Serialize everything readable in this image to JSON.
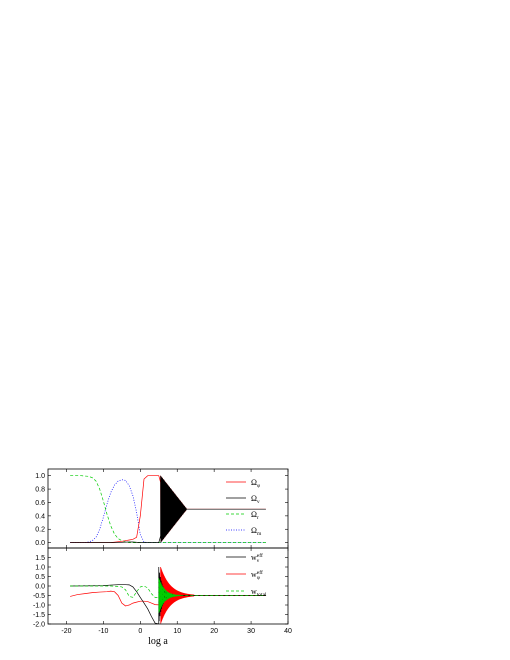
{
  "chart_data": [
    {
      "type": "line",
      "panel": "top",
      "xlabel": "log a",
      "xlim": [
        -25,
        40
      ],
      "ylim": [
        -0.08,
        1.1
      ],
      "xticks": [
        -20,
        -10,
        0,
        10,
        20,
        30,
        40
      ],
      "xtick_labels": [
        "-20",
        "-10",
        "0",
        "10",
        "20",
        "30",
        "40"
      ],
      "yticks": [
        0.0,
        0.2,
        0.4,
        0.6,
        0.8,
        1.0
      ],
      "ytick_labels": [
        "0.0",
        "0.2",
        "0.4",
        "0.6",
        "0.8",
        "1.0"
      ],
      "legend_position": "right",
      "series": [
        {
          "name": "Ω_φ",
          "legend_main": "Ω",
          "legend_sub": "φ",
          "color": "#ff0000",
          "dash": "solid",
          "x": [
            -19,
            -8,
            -5,
            -3,
            -2,
            -1,
            0,
            1,
            2,
            5,
            5.5
          ],
          "y": [
            0.0,
            0.0,
            0.02,
            0.04,
            0.05,
            0.08,
            0.4,
            0.95,
            1.0,
            1.0,
            0.9
          ],
          "oscillation": {
            "x_start": 5.5,
            "x_end": 12.5,
            "center": 0.5,
            "amplitude": 0.5,
            "half_cycles": 40
          },
          "tail": {
            "x": [
              12.5,
              34
            ],
            "y": [
              0.5,
              0.5
            ]
          }
        },
        {
          "name": "Ω_ν",
          "legend_main": "Ω",
          "legend_sub": "ν",
          "color": "#000000",
          "dash": "solid",
          "x": [
            -19,
            -8,
            -5,
            -3,
            -2,
            0,
            2,
            4,
            5,
            5.5
          ],
          "y": [
            0.0,
            0.0,
            0.005,
            0.01,
            0.01,
            0.0,
            0.0,
            0.0,
            0.0,
            0.1
          ],
          "oscillation": {
            "x_start": 5.5,
            "x_end": 12.5,
            "center": 0.5,
            "amplitude": 0.5,
            "half_cycles": 40
          },
          "tail": {
            "x": [
              12.5,
              34
            ],
            "y": [
              0.5,
              0.5
            ]
          }
        },
        {
          "name": "Ω_r",
          "legend_main": "Ω",
          "legend_sub": "r",
          "color": "#00cc00",
          "dash": "dashed",
          "x": [
            -19,
            -16,
            -14,
            -13,
            -12,
            -11,
            -10,
            -9,
            -8,
            -7,
            -6,
            -5,
            -4,
            -3,
            -2,
            0,
            34
          ],
          "y": [
            1.0,
            1.0,
            0.99,
            0.97,
            0.92,
            0.8,
            0.62,
            0.42,
            0.25,
            0.13,
            0.06,
            0.03,
            0.01,
            0.0,
            0.0,
            0.0,
            0.0
          ]
        },
        {
          "name": "Ω_m",
          "legend_main": "Ω",
          "legend_sub": "m",
          "color": "#0000ff",
          "dash": "dotted",
          "x": [
            -19,
            -15,
            -14,
            -13,
            -12,
            -11,
            -10,
            -9,
            -8,
            -7,
            -6,
            -5,
            -4,
            -3,
            -2,
            -1,
            0,
            1,
            2,
            34
          ],
          "y": [
            0.0,
            0.0,
            0.01,
            0.03,
            0.08,
            0.2,
            0.38,
            0.58,
            0.75,
            0.86,
            0.92,
            0.94,
            0.93,
            0.85,
            0.7,
            0.45,
            0.12,
            0.01,
            0.0,
            0.0
          ]
        }
      ]
    },
    {
      "type": "line",
      "panel": "bottom",
      "xlabel": "log a",
      "xlim": [
        -25,
        40
      ],
      "ylim": [
        -2.0,
        2.0
      ],
      "xticks": [
        -20,
        -10,
        0,
        10,
        20,
        30,
        40
      ],
      "xtick_labels": [
        "-20",
        "-10",
        "0",
        "10",
        "20",
        "30",
        "40"
      ],
      "yticks": [
        -2.0,
        -1.5,
        -1.0,
        -0.5,
        0.0,
        0.5,
        1.0,
        1.5
      ],
      "ytick_labels": [
        "-2.0",
        "-1.5",
        "-1.0",
        "-0.5",
        "0.0",
        "0.5",
        "1.0",
        "1.5"
      ],
      "legend_position": "right",
      "series": [
        {
          "name": "w^eff_ν",
          "legend_main": "w",
          "legend_sup": "eff",
          "legend_sub": "ν",
          "color": "#000000",
          "dash": "solid",
          "x": [
            -19,
            -10,
            -8,
            -6,
            -4,
            -3,
            -2,
            -1,
            0,
            1,
            2,
            3,
            4,
            5
          ],
          "y": [
            0.0,
            0.02,
            0.05,
            0.07,
            0.07,
            0.06,
            -0.05,
            -0.3,
            -0.6,
            -0.9,
            -1.2,
            -1.6,
            -1.95,
            -2.0
          ],
          "oscillation": {
            "x_start": 5,
            "x_end": 9,
            "center": -0.5,
            "amplitude": 1.5,
            "decay_to": 0.02,
            "half_cycles": 18
          },
          "tail": {
            "x": [
              9,
              34
            ],
            "y": [
              -0.5,
              -0.5
            ]
          }
        },
        {
          "name": "w^eff_φ",
          "legend_main": "w",
          "legend_sup": "eff",
          "legend_sub": "φ",
          "color": "#ff0000",
          "dash": "solid",
          "x": [
            -19,
            -17,
            -15,
            -13,
            -11,
            -9,
            -8,
            -7,
            -6,
            -5,
            -4,
            -3,
            -2,
            -1,
            0,
            1,
            2,
            3,
            4,
            5.5
          ],
          "y": [
            -0.55,
            -0.45,
            -0.4,
            -0.35,
            -0.32,
            -0.3,
            -0.27,
            -0.3,
            -0.5,
            -0.9,
            -1.05,
            -1.0,
            -0.9,
            -0.85,
            -0.8,
            -0.8,
            -0.82,
            -0.9,
            -0.98,
            -1.0
          ],
          "oscillation": {
            "x_start": 5.5,
            "x_end": 14.5,
            "center": -0.5,
            "amplitude": 1.5,
            "decay_to": 0.03,
            "half_cycles": 110
          },
          "tail": {
            "x": [
              14.5,
              34
            ],
            "y": [
              -0.5,
              -0.5
            ]
          }
        },
        {
          "name": "w_total",
          "legend_main": "w",
          "legend_sub": "total",
          "color": "#00cc00",
          "dash": "dashed",
          "x": [
            -19,
            -10,
            -8,
            -6,
            -5,
            -4,
            -3,
            -2,
            -1,
            0,
            1,
            2,
            3,
            4,
            5
          ],
          "y": [
            0.0,
            0.0,
            0.0,
            -0.02,
            -0.05,
            -0.2,
            -0.55,
            -0.6,
            -0.3,
            -0.05,
            0.0,
            -0.1,
            -0.4,
            -0.6,
            -0.6
          ],
          "oscillation": {
            "x_start": 5,
            "x_end": 11,
            "center": -0.5,
            "amplitude": 0.95,
            "decay_to": 0.02,
            "half_cycles": 60
          },
          "tail": {
            "x": [
              11,
              34
            ],
            "y": [
              -0.5,
              -0.5
            ]
          }
        }
      ]
    }
  ]
}
